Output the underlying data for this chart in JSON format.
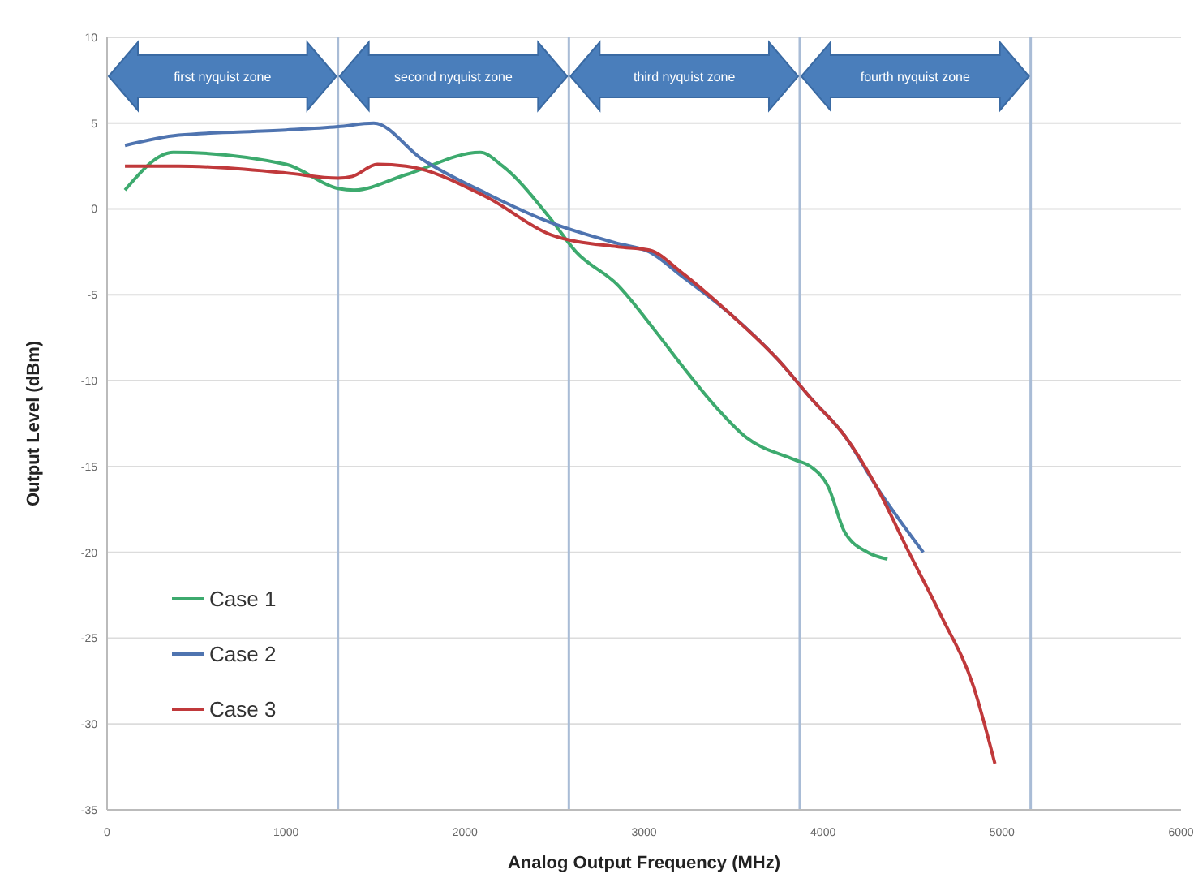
{
  "chart_data": {
    "type": "line",
    "xlabel": "Analog Output Frequency (MHz)",
    "ylabel": "Output Level (dBm)",
    "xlim": [
      0,
      6000
    ],
    "xticks": [
      0,
      1000,
      2000,
      3000,
      4000,
      5000,
      6000
    ],
    "ylim": [
      -35,
      10
    ],
    "yticks": [
      -35,
      -30,
      -25,
      -20,
      -15,
      -10,
      -5,
      0,
      5,
      10
    ],
    "grid": "y",
    "legend": "bottom left",
    "marker": "none",
    "line_style": "solid",
    "ref_lines": [
      {
        "axis": "x",
        "value": 1290,
        "color": "#a9bcd6"
      },
      {
        "axis": "x",
        "value": 2580,
        "color": "#a9bcd6"
      },
      {
        "axis": "x",
        "value": 3870,
        "color": "#a9bcd6"
      },
      {
        "axis": "x",
        "value": 5160,
        "color": "#a9bcd6"
      }
    ],
    "annotations": [
      "first nyquist zone",
      "second nyquist zone",
      "third nyquist zone",
      "fourth nyquist zone"
    ],
    "series": [
      {
        "name": "Case 1",
        "color": "#3daa6e",
        "x": [
          100,
          370,
          1000,
          1290,
          1380,
          1670,
          2085,
          2210,
          2480,
          2620,
          2850,
          3070,
          3210,
          3390,
          3570,
          3840,
          3930,
          4030,
          4120,
          4250,
          4360
        ],
        "values": [
          1.1,
          3.3,
          2.6,
          1.2,
          1.1,
          2.0,
          3.3,
          2.5,
          -0.6,
          -2.5,
          -4.4,
          -7.2,
          -9.1,
          -11.4,
          -13.3,
          -14.6,
          -15,
          -16.2,
          -18.8,
          -20,
          -20.4
        ]
      },
      {
        "name": "Case 2",
        "color": "#4f74b0",
        "x": [
          100,
          400,
          1000,
          1290,
          1490,
          1760,
          2120,
          2480,
          2850,
          3030,
          3210,
          3480,
          3750,
          3930,
          4120,
          4300,
          4560
        ],
        "values": [
          3.7,
          4.3,
          4.6,
          4.8,
          5.0,
          2.9,
          0.9,
          -0.8,
          -2.0,
          -2.5,
          -3.9,
          -6.1,
          -8.8,
          -11,
          -13.2,
          -16.2,
          -20
        ]
      },
      {
        "name": "Case 3",
        "color": "#c0393b",
        "x": [
          100,
          400,
          1000,
          1290,
          1370,
          1510,
          1670,
          2120,
          2480,
          2850,
          3030,
          3210,
          3480,
          3750,
          3930,
          4120,
          4300,
          4480,
          4660,
          4840,
          4960
        ],
        "values": [
          2.5,
          2.5,
          2.1,
          1.8,
          1.9,
          2.6,
          2.5,
          0.7,
          -1.5,
          -2.2,
          -2.4,
          -3.7,
          -6.1,
          -8.8,
          -11,
          -13.2,
          -16.2,
          -20,
          -23.7,
          -27.8,
          -32.3
        ]
      }
    ]
  }
}
